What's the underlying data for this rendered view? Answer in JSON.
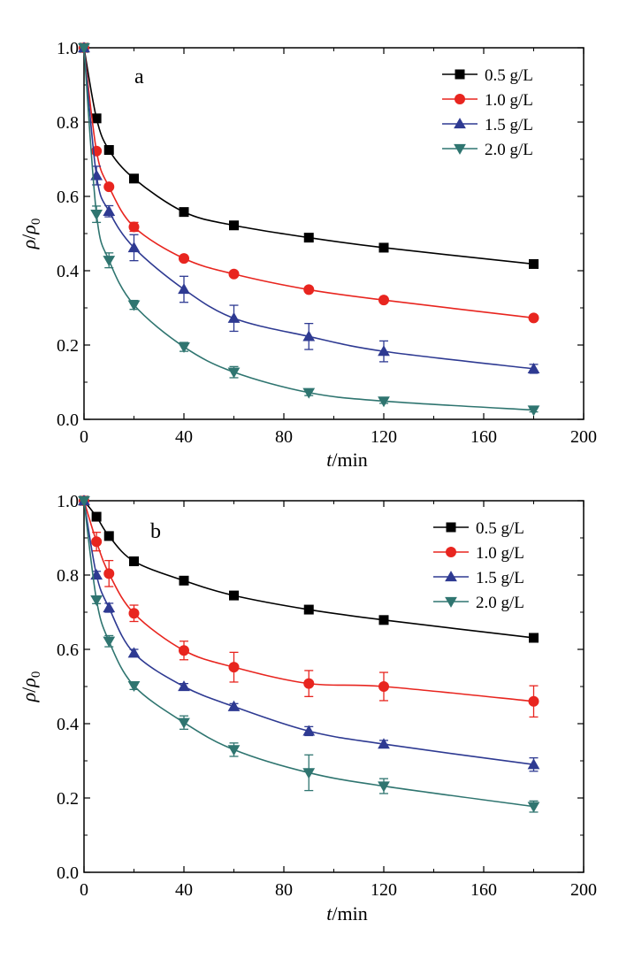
{
  "chart_data": [
    {
      "type": "line",
      "panel": "a",
      "xlabel_italic": "t",
      "xlabel_unit": "/min",
      "ylabel_main": "ρ",
      "ylabel_slash": "/",
      "ylabel_base": "ρ",
      "ylabel_sub": "0",
      "xlim": [
        0,
        200
      ],
      "ylim": [
        0,
        1.0
      ],
      "xticks": [
        0,
        40,
        80,
        120,
        160,
        200
      ],
      "yticks": [
        0.0,
        0.2,
        0.4,
        0.6,
        0.8,
        1.0
      ],
      "xtick_labels": [
        "0",
        "40",
        "80",
        "120",
        "160",
        "200"
      ],
      "ytick_labels": [
        "0.0",
        "0.2",
        "0.4",
        "0.6",
        "0.8",
        "1.0"
      ],
      "legend_position": "top-right",
      "x": [
        0,
        5,
        10,
        20,
        40,
        60,
        90,
        120,
        180
      ],
      "series": [
        {
          "name": "0.5 g/L",
          "color": "#000000",
          "marker": "square",
          "values": [
            1.0,
            0.81,
            0.725,
            0.648,
            0.558,
            0.522,
            0.489,
            0.462,
            0.418
          ],
          "errors": [
            0,
            0,
            0,
            0,
            0,
            0,
            0,
            0,
            0
          ]
        },
        {
          "name": "1.0 g/L",
          "color": "#e8251f",
          "marker": "circle",
          "values": [
            1.0,
            0.722,
            0.626,
            0.518,
            0.433,
            0.391,
            0.349,
            0.321,
            0.273
          ],
          "errors": [
            0,
            0,
            0,
            0.012,
            0,
            0,
            0,
            0,
            0
          ]
        },
        {
          "name": "1.5 g/L",
          "color": "#2e3a92",
          "marker": "triangle-up",
          "values": [
            1.0,
            0.656,
            0.56,
            0.462,
            0.35,
            0.272,
            0.223,
            0.183,
            0.136
          ],
          "errors": [
            0,
            0.025,
            0.015,
            0.035,
            0.035,
            0.035,
            0.035,
            0.028,
            0.012
          ]
        },
        {
          "name": "2.0 g/L",
          "color": "#2f7570",
          "marker": "triangle-down",
          "values": [
            1.0,
            0.552,
            0.428,
            0.308,
            0.195,
            0.127,
            0.072,
            0.049,
            0.025
          ],
          "errors": [
            0,
            0.022,
            0.02,
            0.012,
            0.012,
            0.015,
            0.008,
            0.006,
            0.005
          ]
        }
      ]
    },
    {
      "type": "line",
      "panel": "b",
      "xlabel_italic": "t",
      "xlabel_unit": "/min",
      "ylabel_main": "ρ",
      "ylabel_slash": "/",
      "ylabel_base": "ρ",
      "ylabel_sub": "0",
      "xlim": [
        0,
        200
      ],
      "ylim": [
        0,
        1.0
      ],
      "xticks": [
        0,
        40,
        80,
        120,
        160,
        200
      ],
      "yticks": [
        0.0,
        0.2,
        0.4,
        0.6,
        0.8,
        1.0
      ],
      "xtick_labels": [
        "0",
        "40",
        "80",
        "120",
        "160",
        "200"
      ],
      "ytick_labels": [
        "0.0",
        "0.2",
        "0.4",
        "0.6",
        "0.8",
        "1.0"
      ],
      "legend_position": "top-right",
      "x": [
        0,
        5,
        10,
        20,
        40,
        60,
        90,
        120,
        180
      ],
      "series": [
        {
          "name": "0.5 g/L",
          "color": "#000000",
          "marker": "square",
          "values": [
            1.0,
            0.957,
            0.905,
            0.837,
            0.785,
            0.745,
            0.707,
            0.679,
            0.631
          ],
          "errors": [
            0,
            0,
            0,
            0,
            0,
            0,
            0,
            0,
            0
          ]
        },
        {
          "name": "1.0 g/L",
          "color": "#e8251f",
          "marker": "circle",
          "values": [
            1.0,
            0.89,
            0.804,
            0.697,
            0.597,
            0.552,
            0.508,
            0.5,
            0.46
          ],
          "errors": [
            0,
            0.025,
            0.035,
            0.022,
            0.025,
            0.04,
            0.035,
            0.038,
            0.042
          ]
        },
        {
          "name": "1.5 g/L",
          "color": "#2e3a92",
          "marker": "triangle-up",
          "values": [
            1.0,
            0.8,
            0.712,
            0.59,
            0.5,
            0.446,
            0.38,
            0.345,
            0.29
          ],
          "errors": [
            0,
            0.01,
            0.012,
            0.01,
            0.008,
            0.008,
            0.012,
            0.01,
            0.018
          ]
        },
        {
          "name": "2.0 g/L",
          "color": "#2f7570",
          "marker": "triangle-down",
          "values": [
            1.0,
            0.733,
            0.622,
            0.502,
            0.403,
            0.33,
            0.268,
            0.232,
            0.177
          ],
          "errors": [
            0,
            0.01,
            0.015,
            0.01,
            0.018,
            0.018,
            0.048,
            0.02,
            0.015
          ]
        }
      ]
    }
  ]
}
